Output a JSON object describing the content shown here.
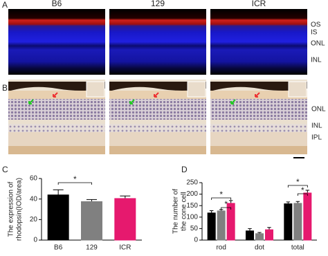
{
  "figure": {
    "panel_labels": [
      "A",
      "B",
      "C",
      "D"
    ],
    "strains": [
      "B6",
      "129",
      "ICR"
    ],
    "layers_a": [
      "OS",
      "IS",
      "ONL",
      "INL"
    ],
    "layers_b": [
      "ONL",
      "INL",
      "IPL"
    ]
  },
  "chart_data": [
    {
      "type": "bar",
      "ylabel": [
        "The expression of",
        "rhodopsin(IOD/area)"
      ],
      "categories": [
        "B6",
        "129",
        "ICR"
      ],
      "values": [
        44,
        37.5,
        40.5
      ],
      "errors": [
        5,
        2,
        2.5
      ],
      "colors": [
        "#000000",
        "#808080",
        "#e6196e"
      ],
      "ylim": [
        0,
        60
      ],
      "yticks": [
        0,
        20,
        40,
        60
      ],
      "annotations": [
        "*"
      ]
    },
    {
      "type": "grouped_bar",
      "ylabel": [
        "The number of",
        "the cone cell"
      ],
      "categories": [
        "rod",
        "dot",
        "total"
      ],
      "series": [
        {
          "color": "#000000",
          "values": [
            118,
            40,
            158
          ],
          "errors": [
            10,
            10,
            8
          ]
        },
        {
          "color": "#808080",
          "values": [
            127,
            28,
            160
          ],
          "errors": [
            6,
            5,
            8
          ]
        },
        {
          "color": "#e6196e",
          "values": [
            160,
            45,
            205
          ],
          "errors": [
            12,
            10,
            12
          ]
        }
      ],
      "ylim": [
        0,
        250
      ],
      "yticks": [
        0,
        50,
        100,
        150,
        200,
        250
      ],
      "annotations": [
        "*",
        "*",
        "*",
        "*"
      ]
    }
  ]
}
